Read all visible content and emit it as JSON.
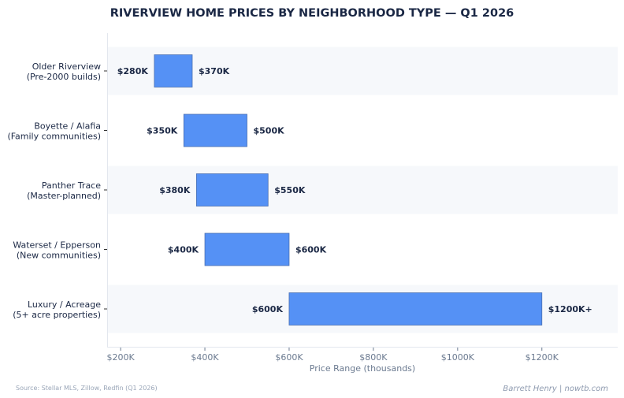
{
  "chart_data": {
    "type": "bar",
    "orientation": "horizontal-floating",
    "title": "RIVERVIEW HOME PRICES BY NEIGHBORHOOD TYPE — Q1 2026",
    "xlabel": "Price Range (thousands)",
    "ylabel": "",
    "xlim": [
      168,
      1380
    ],
    "xticks": [
      200,
      400,
      600,
      800,
      1000,
      1200
    ],
    "xtick_labels": [
      "$200K",
      "$400K",
      "$600K",
      "$800K",
      "$1000K",
      "$1200K"
    ],
    "grid": false,
    "categories": [
      [
        "Older Riverview",
        "(Pre-2000 builds)"
      ],
      [
        "Boyette / Alafia",
        "(Family communities)"
      ],
      [
        "Panther Trace",
        "(Master-planned)"
      ],
      [
        "Waterset / Epperson",
        "(New communities)"
      ],
      [
        "Luxury / Acreage",
        "(5+ acre properties)"
      ]
    ],
    "low": [
      280,
      350,
      380,
      400,
      600
    ],
    "high": [
      370,
      500,
      550,
      600,
      1200
    ],
    "low_labels": [
      "$280K",
      "$350K",
      "$380K",
      "$400K",
      "$600K"
    ],
    "high_labels": [
      "$370K",
      "$500K",
      "$550K",
      "$600K",
      "$1200K+"
    ],
    "bar_color": "#5591f5",
    "bar_edge_color": "#4a6fb0",
    "band_color": "#f6f8fb"
  },
  "footer": {
    "source": "Source: Stellar MLS, Zillow, Redfin (Q1 2026)",
    "credit": "Barrett Henry | nowtb.com"
  }
}
